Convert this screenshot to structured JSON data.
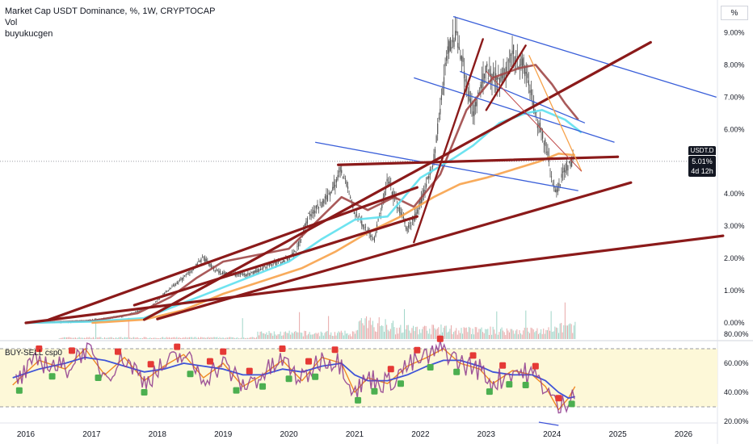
{
  "header": {
    "title": "Market Cap USDT Dominance, %, 1W, CRYPTOCAP",
    "line2": "Vol",
    "line3": "buyukucgen"
  },
  "price_axis": {
    "unit_button": "%",
    "current_symbol": "USDT.D",
    "current_value": "5.01%",
    "countdown": "4d 12h"
  },
  "oscillator": {
    "title": "BUY-SELL csp0"
  },
  "colors": {
    "trendline": "#8b1a1a",
    "channel": "#3a5fd9",
    "ma_fast": "#a04848",
    "ma_mid": "#5ee0ee",
    "ma_slow": "#f7a24a",
    "candle_up": "#555555",
    "osc_fast": "#f08a24",
    "osc_slow": "#3f54d8",
    "osc_purple": "#8e3a8e",
    "buy_marker": "#4caf50",
    "sell_marker": "#e53935",
    "band_fill": "#fdf8d8"
  },
  "chart_data": [
    {
      "type": "line",
      "title": "Market Cap USDT Dominance, %, 1W, CRYPTOCAP",
      "ylabel": "%",
      "x_ticks": [
        "2016",
        "2017",
        "2018",
        "2019",
        "2020",
        "2021",
        "2022",
        "2023",
        "2024",
        "2025",
        "2026"
      ],
      "y_ticks": [
        "9.00%",
        "8.00%",
        "7.00%",
        "6.00%",
        "5.00%",
        "4.00%",
        "3.00%",
        "2.00%",
        "1.00%",
        "0.00%"
      ],
      "ylim": [
        -0.2,
        9.8
      ],
      "series": [
        {
          "x": [
            2015.8,
            2016.5,
            2017.0,
            2017.5,
            2017.9,
            2018.1,
            2018.4,
            2018.7,
            2018.9,
            2019.1,
            2019.4,
            2019.7,
            2019.9,
            2020.1,
            2020.3,
            2020.6,
            2020.8,
            2021.0,
            2021.3,
            2021.5,
            2021.8,
            2021.95,
            2022.2,
            2022.4,
            2022.55,
            2022.8,
            2023.0,
            2023.2,
            2023.4,
            2023.6,
            2023.75,
            2023.9,
            2024.05,
            2024.2,
            2024.3
          ],
          "values": [
            0.0,
            0.02,
            0.08,
            0.22,
            0.5,
            0.9,
            1.4,
            2.0,
            1.6,
            1.5,
            1.5,
            1.8,
            1.9,
            2.2,
            3.3,
            3.9,
            4.8,
            3.4,
            2.6,
            4.4,
            2.9,
            3.4,
            5.0,
            8.3,
            9.0,
            6.5,
            7.8,
            7.4,
            8.4,
            7.9,
            6.4,
            5.6,
            4.0,
            4.8,
            5.01
          ]
        },
        {
          "x": [
            2016.0,
            2017.0,
            2017.7,
            2018.2,
            2018.6,
            2019.0,
            2019.5,
            2020.0,
            2020.5,
            2020.8,
            2021.2,
            2021.6,
            2021.9,
            2022.3,
            2022.7,
            2023.1,
            2023.5,
            2023.75,
            2024.0,
            2024.2,
            2024.4
          ],
          "values": [
            0.0,
            0.06,
            0.3,
            0.8,
            1.4,
            1.9,
            2.1,
            2.3,
            3.3,
            3.9,
            3.5,
            3.9,
            3.6,
            4.6,
            6.6,
            7.6,
            7.9,
            8.0,
            7.4,
            6.8,
            6.3
          ]
        },
        {
          "x": [
            2016.0,
            2017.0,
            2017.8,
            2018.5,
            2019.0,
            2019.5,
            2020.0,
            2020.5,
            2021.0,
            2021.5,
            2022.0,
            2022.5,
            2022.8,
            2023.2,
            2023.6,
            2023.85,
            2024.2,
            2024.45
          ],
          "values": [
            0.0,
            0.04,
            0.15,
            0.7,
            1.1,
            1.5,
            1.9,
            2.6,
            3.2,
            3.3,
            4.5,
            5.1,
            5.5,
            6.2,
            6.5,
            6.6,
            6.3,
            5.9
          ]
        },
        {
          "x": [
            2017.0,
            2017.8,
            2018.4,
            2019.0,
            2019.6,
            2020.2,
            2020.7,
            2021.2,
            2021.7,
            2022.2,
            2022.6,
            2023.0,
            2023.4,
            2023.8,
            2024.1,
            2024.35
          ],
          "values": [
            0.0,
            0.1,
            0.4,
            0.9,
            1.3,
            1.7,
            2.2,
            2.8,
            3.3,
            3.9,
            4.3,
            4.5,
            4.75,
            5.0,
            5.25,
            5.2
          ]
        }
      ],
      "trendlines": [
        {
          "x": [
            2016.35,
            2021.95
          ],
          "values": [
            0.1,
            4.2
          ]
        },
        {
          "x": [
            2017.65,
            2021.95
          ],
          "values": [
            0.55,
            3.3
          ]
        },
        {
          "x": [
            2017.8,
            2025.5
          ],
          "values": [
            0.1,
            8.7
          ]
        },
        {
          "x": [
            2016.0,
            2026.6
          ],
          "values": [
            0.0,
            2.7
          ]
        },
        {
          "x": [
            2018.0,
            2025.2
          ],
          "values": [
            0.12,
            4.35
          ]
        },
        {
          "x": [
            2020.75,
            2025.0
          ],
          "values": [
            4.9,
            5.15
          ]
        },
        {
          "x": [
            2021.9,
            2022.95
          ],
          "values": [
            2.5,
            8.8
          ]
        },
        {
          "x": [
            2023.0,
            2023.6
          ],
          "values": [
            6.6,
            8.6
          ]
        }
      ],
      "channels": [
        {
          "x": [
            2022.5,
            2026.5
          ],
          "values": [
            9.5,
            7.0
          ]
        },
        {
          "x": [
            2021.9,
            2024.95
          ],
          "values": [
            7.6,
            5.6
          ]
        },
        {
          "x": [
            2020.4,
            2024.4
          ],
          "values": [
            5.6,
            4.1
          ]
        },
        {
          "x": [
            2022.6,
            2024.5
          ],
          "values": [
            7.8,
            6.2
          ]
        }
      ]
    },
    {
      "type": "line",
      "title": "BUY-SELL csp0",
      "y_ticks": [
        "80.00%",
        "60.00%",
        "40.00%",
        "20.00%"
      ],
      "ylim": [
        17,
        83
      ],
      "band": [
        30,
        70
      ],
      "series": [
        {
          "x": [
            2015.8,
            2016.2,
            2016.6,
            2016.9,
            2017.2,
            2017.5,
            2017.8,
            2018.1,
            2018.4,
            2018.7,
            2019.0,
            2019.3,
            2019.6,
            2019.9,
            2020.2,
            2020.5,
            2020.8,
            2021.0,
            2021.2,
            2021.5,
            2021.8,
            2022.1,
            2022.35,
            2022.6,
            2022.9,
            2023.1,
            2023.4,
            2023.7,
            2023.9,
            2024.1,
            2024.25,
            2024.35
          ],
          "values": [
            45,
            62,
            56,
            70,
            52,
            64,
            48,
            58,
            66,
            50,
            60,
            44,
            52,
            62,
            48,
            64,
            60,
            40,
            50,
            46,
            58,
            64,
            70,
            60,
            56,
            46,
            55,
            52,
            44,
            28,
            36,
            44
          ]
        },
        {
          "x": [
            2015.8,
            2016.2,
            2016.6,
            2016.9,
            2017.2,
            2017.5,
            2017.8,
            2018.1,
            2018.4,
            2018.7,
            2019.0,
            2019.3,
            2019.6,
            2019.9,
            2020.2,
            2020.5,
            2020.8,
            2021.0,
            2021.2,
            2021.5,
            2021.8,
            2022.1,
            2022.35,
            2022.6,
            2022.9,
            2023.1,
            2023.4,
            2023.7,
            2023.9,
            2024.1,
            2024.25,
            2024.35
          ],
          "values": [
            50,
            56,
            60,
            64,
            62,
            58,
            54,
            56,
            60,
            58,
            56,
            52,
            52,
            56,
            54,
            58,
            60,
            52,
            48,
            48,
            52,
            58,
            62,
            62,
            58,
            54,
            52,
            52,
            48,
            40,
            36,
            37
          ]
        }
      ]
    }
  ]
}
